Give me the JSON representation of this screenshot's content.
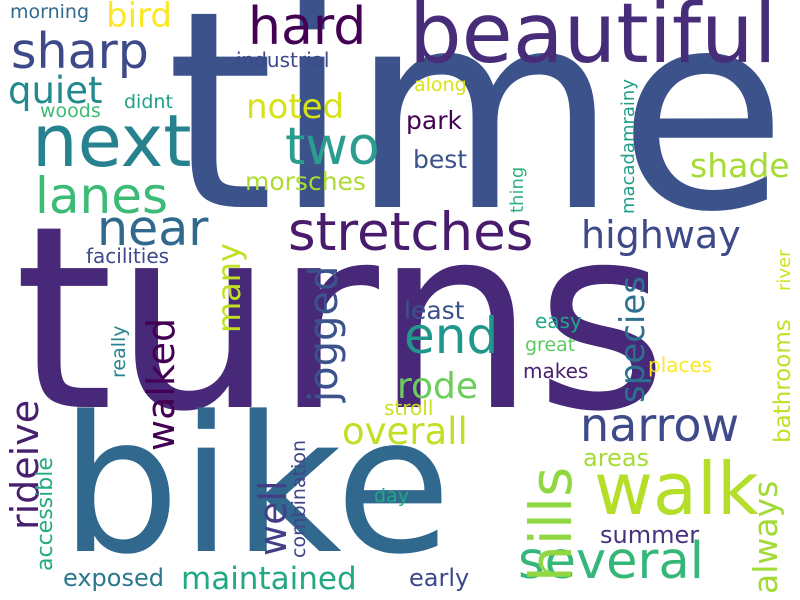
{
  "colors": {
    "background": "#ffffff",
    "palette": [
      "#440154",
      "#46327e",
      "#365c8d",
      "#277f8e",
      "#1fa187",
      "#4ac16d",
      "#a0da39",
      "#fde725"
    ]
  },
  "words": [
    {
      "text": "time",
      "color": "#3b528b"
    },
    {
      "text": "turns",
      "color": "#482878"
    },
    {
      "text": "bike",
      "color": "#31688e"
    },
    {
      "text": "beautiful",
      "color": "#472c7a"
    },
    {
      "text": "walk",
      "color": "#b5de2b"
    },
    {
      "text": "next",
      "color": "#26828e"
    },
    {
      "text": "hard",
      "color": "#440154"
    },
    {
      "text": "sharp",
      "color": "#3e4989"
    },
    {
      "text": "lanes",
      "color": "#3bbb75"
    },
    {
      "text": "two",
      "color": "#2a9d8f"
    },
    {
      "text": "near",
      "color": "#31688e"
    },
    {
      "text": "stretches",
      "color": "#481b6d"
    },
    {
      "text": "several",
      "color": "#35b779"
    },
    {
      "text": "narrow",
      "color": "#3e4a89"
    },
    {
      "text": "end",
      "color": "#1f988b"
    },
    {
      "text": "hills",
      "color": "#90d743"
    },
    {
      "text": "highway",
      "color": "#3e4989"
    },
    {
      "text": "overall",
      "color": "#c2df23"
    },
    {
      "text": "maintained",
      "color": "#22a884"
    },
    {
      "text": "rode",
      "color": "#6ccd5a"
    },
    {
      "text": "quiet",
      "color": "#23898e"
    },
    {
      "text": "noted",
      "color": "#d8e219"
    },
    {
      "text": "shade",
      "color": "#a5db36"
    },
    {
      "text": "bird",
      "color": "#fde725"
    },
    {
      "text": "jogged",
      "color": "#3b528b"
    },
    {
      "text": "walked",
      "color": "#440154"
    },
    {
      "text": "species",
      "color": "#2c728e"
    },
    {
      "text": "well",
      "color": "#433e85"
    },
    {
      "text": "rideive",
      "color": "#481f70"
    },
    {
      "text": "always",
      "color": "#a2da37"
    },
    {
      "text": "many",
      "color": "#c0df25"
    },
    {
      "text": "morsches",
      "color": "#addc30"
    },
    {
      "text": "park",
      "color": "#440154"
    },
    {
      "text": "best",
      "color": "#3b528b"
    },
    {
      "text": "exposed",
      "color": "#2a788e"
    },
    {
      "text": "early",
      "color": "#3e4989"
    },
    {
      "text": "summer",
      "color": "#46337e"
    },
    {
      "text": "areas",
      "color": "#a5db36"
    },
    {
      "text": "accessible",
      "color": "#25ab82"
    },
    {
      "text": "least",
      "color": "#3b528b"
    },
    {
      "text": "easy",
      "color": "#22a884"
    },
    {
      "text": "makes",
      "color": "#481f70"
    },
    {
      "text": "industrial",
      "color": "#3e4a89"
    },
    {
      "text": "facilities",
      "color": "#3e4989"
    },
    {
      "text": "morning",
      "color": "#31688e"
    },
    {
      "text": "woods",
      "color": "#3bbb75"
    },
    {
      "text": "didnt",
      "color": "#1fa187"
    },
    {
      "text": "along",
      "color": "#d8e219"
    },
    {
      "text": "really",
      "color": "#26828e"
    },
    {
      "text": "stroll",
      "color": "#c8e020"
    },
    {
      "text": "great",
      "color": "#5ec962"
    },
    {
      "text": "places",
      "color": "#fde725"
    },
    {
      "text": "day",
      "color": "#22a884"
    },
    {
      "text": "combination",
      "color": "#414487"
    },
    {
      "text": "bathrooms",
      "color": "#c2df23"
    },
    {
      "text": "river",
      "color": "#d0e11c"
    },
    {
      "text": "thing",
      "color": "#2db27d"
    },
    {
      "text": "macadamrainy",
      "color": "#1f9e89"
    }
  ]
}
